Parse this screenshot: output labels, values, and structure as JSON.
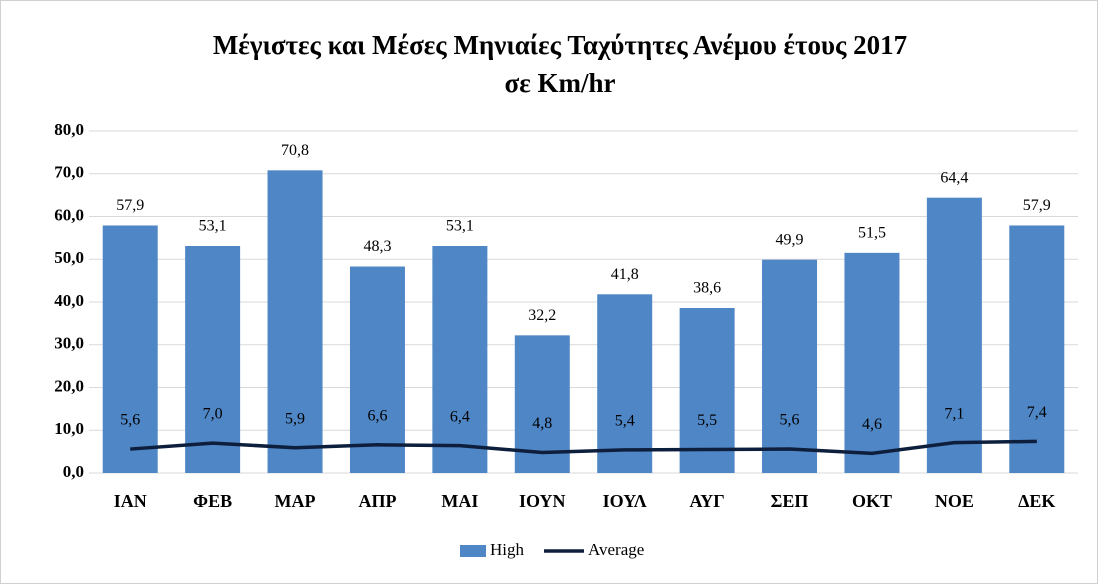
{
  "chart_data": {
    "type": "bar",
    "title": [
      "Μέγιστες και Μέσες Μηνιαίες Ταχύτητες Ανέμου έτους 2017",
      "σε Km/hr"
    ],
    "categories": [
      "ΙΑΝ",
      "ΦΕΒ",
      "ΜΑΡ",
      "ΑΠΡ",
      "ΜΑΙ",
      "ΙΟΥΝ",
      "ΙΟΥΛ",
      "ΑΥΓ",
      "ΣΕΠ",
      "ΟΚΤ",
      "ΝΟΕ",
      "ΔΕΚ"
    ],
    "series": [
      {
        "name": "High",
        "type": "bar",
        "color": "#4f86c6",
        "values": [
          57.9,
          53.1,
          70.8,
          48.3,
          53.1,
          32.2,
          41.8,
          38.6,
          49.9,
          51.5,
          64.4,
          57.9
        ],
        "value_labels": [
          "57,9",
          "53,1",
          "70,8",
          "48,3",
          "53,1",
          "32,2",
          "41,8",
          "38,6",
          "49,9",
          "51,5",
          "64,4",
          "57,9"
        ]
      },
      {
        "name": "Average",
        "type": "line",
        "color": "#0d1f3c",
        "values": [
          5.6,
          7.0,
          5.9,
          6.6,
          6.4,
          4.8,
          5.4,
          5.5,
          5.6,
          4.6,
          7.1,
          7.4
        ],
        "value_labels": [
          "5,6",
          "7,0",
          "5,9",
          "6,6",
          "6,4",
          "4,8",
          "5,4",
          "5,5",
          "5,6",
          "4,6",
          "7,1",
          "7,4"
        ]
      }
    ],
    "ylim": [
      0,
      80
    ],
    "yticks": [
      {
        "value": 0,
        "label": "0,0"
      },
      {
        "value": 10,
        "label": "10,0"
      },
      {
        "value": 20,
        "label": "20,0"
      },
      {
        "value": 30,
        "label": "30,0"
      },
      {
        "value": 40,
        "label": "40,0"
      },
      {
        "value": 50,
        "label": "50,0"
      },
      {
        "value": 60,
        "label": "60,0"
      },
      {
        "value": 70,
        "label": "70,0"
      },
      {
        "value": 80,
        "label": "80,0"
      }
    ],
    "grid": true,
    "legend": "bottom"
  }
}
